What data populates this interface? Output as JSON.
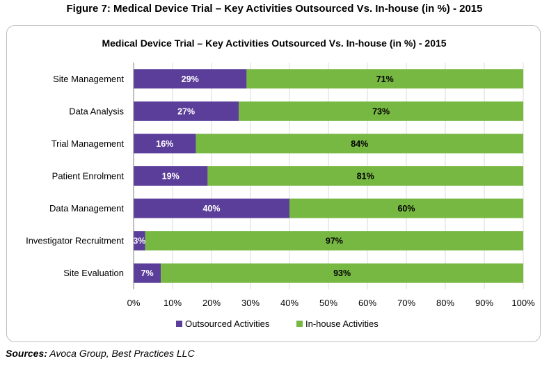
{
  "figure_title": "Figure 7: Medical Device Trial – Key Activities Outsourced Vs. In-house (in %) - 2015",
  "sources_label": "Sources:",
  "sources_text": " Avoca Group, Best Practices LLC",
  "colors": {
    "outsourced": "#5B3E9A",
    "inhouse": "#77B843",
    "grid": "#d9d9d9"
  },
  "chart_data": {
    "type": "bar",
    "orientation": "horizontal",
    "stacked": true,
    "title": "Medical Device Trial – Key Activities Outsourced Vs. In-house (in %) - 2015",
    "categories": [
      "Site Management",
      "Data Analysis",
      "Trial Management",
      "Patient Enrolment",
      "Data Management",
      "Investigator Recruitment",
      "Site Evaluation"
    ],
    "series": [
      {
        "name": "Outsourced Activities",
        "values": [
          29,
          27,
          16,
          19,
          40,
          3,
          7
        ],
        "labels": [
          "29%",
          "27%",
          "16%",
          "19%",
          "40%",
          "3%",
          "7%"
        ]
      },
      {
        "name": "In-house Activities",
        "values": [
          71,
          73,
          84,
          81,
          60,
          97,
          93
        ],
        "labels": [
          "71%",
          "73%",
          "84%",
          "81%",
          "60%",
          "97%",
          "93%"
        ]
      }
    ],
    "xlim": [
      0,
      100
    ],
    "xticks": [
      "0%",
      "10%",
      "20%",
      "30%",
      "40%",
      "50%",
      "60%",
      "70%",
      "80%",
      "90%",
      "100%"
    ],
    "grid": true,
    "legend_position": "bottom"
  }
}
